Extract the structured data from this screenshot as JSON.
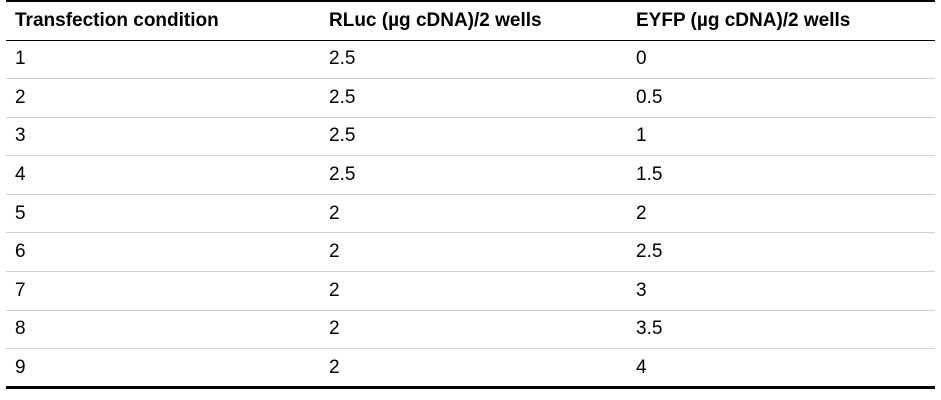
{
  "table": {
    "headers": [
      "Transfection condition",
      "RLuc (µg cDNA)/2 wells",
      "EYFP (µg cDNA)/2 wells"
    ],
    "rows": [
      [
        "1",
        "2.5",
        "0"
      ],
      [
        "2",
        "2.5",
        "0.5"
      ],
      [
        "3",
        "2.5",
        "1"
      ],
      [
        "4",
        "2.5",
        "1.5"
      ],
      [
        "5",
        "2",
        "2"
      ],
      [
        "6",
        "2",
        "2.5"
      ],
      [
        "7",
        "2",
        "3"
      ],
      [
        "8",
        "2",
        "3.5"
      ],
      [
        "9",
        "2",
        "4"
      ]
    ]
  }
}
